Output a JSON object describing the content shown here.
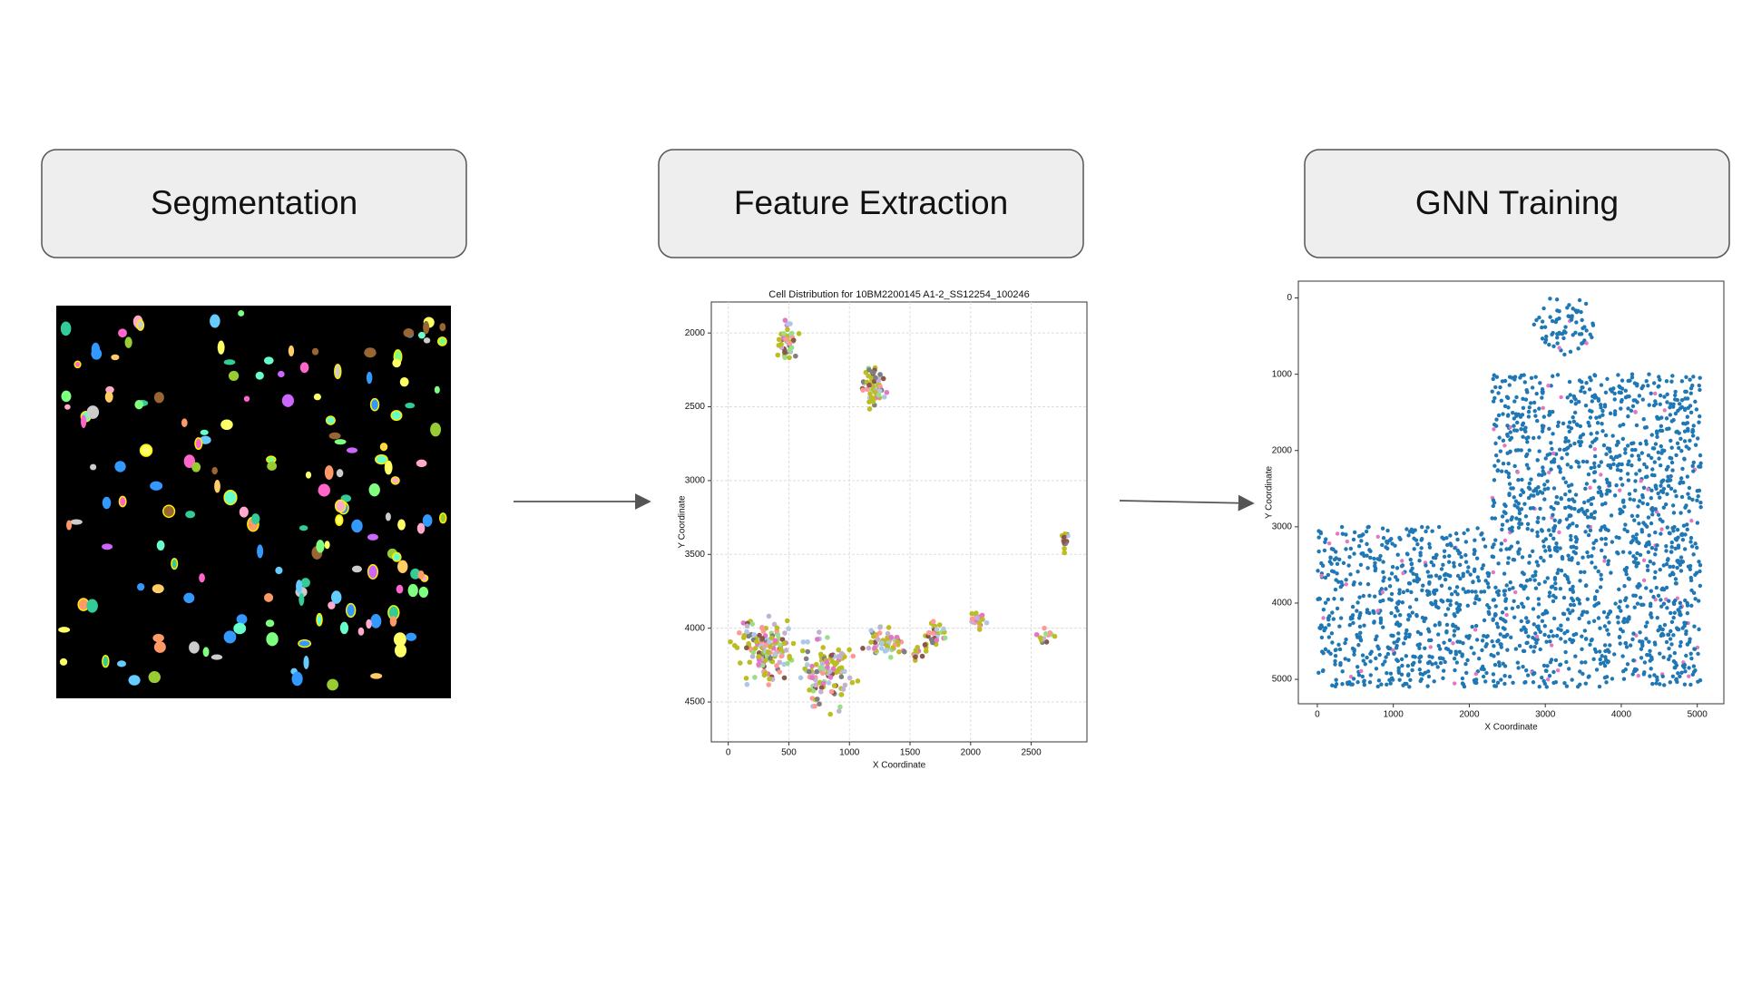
{
  "stages": [
    {
      "label": "Segmentation"
    },
    {
      "label": "Feature Extraction"
    },
    {
      "label": "GNN Training"
    }
  ],
  "feature_plot": {
    "title": "Cell Distribution for 10BM2200145 A1-2_SS12254_100246",
    "xlabel": "X Coordinate",
    "ylabel": "Y Coordinate",
    "xlim": [
      -140,
      2960
    ],
    "ylim": [
      1790,
      4770
    ],
    "xticks": [
      0,
      500,
      1000,
      1500,
      2000,
      2500
    ],
    "yticks": [
      2000,
      2500,
      3000,
      3500,
      4000,
      4500
    ]
  },
  "gnn_plot": {
    "xlabel": "X Coordinate",
    "ylabel": "Y Coordinate",
    "xlim": [
      -250,
      5350
    ],
    "ylim": [
      -220,
      5320
    ],
    "xticks": [
      0,
      1000,
      2000,
      3000,
      4000,
      5000
    ],
    "yticks": [
      0,
      1000,
      2000,
      3000,
      4000,
      5000
    ]
  }
}
